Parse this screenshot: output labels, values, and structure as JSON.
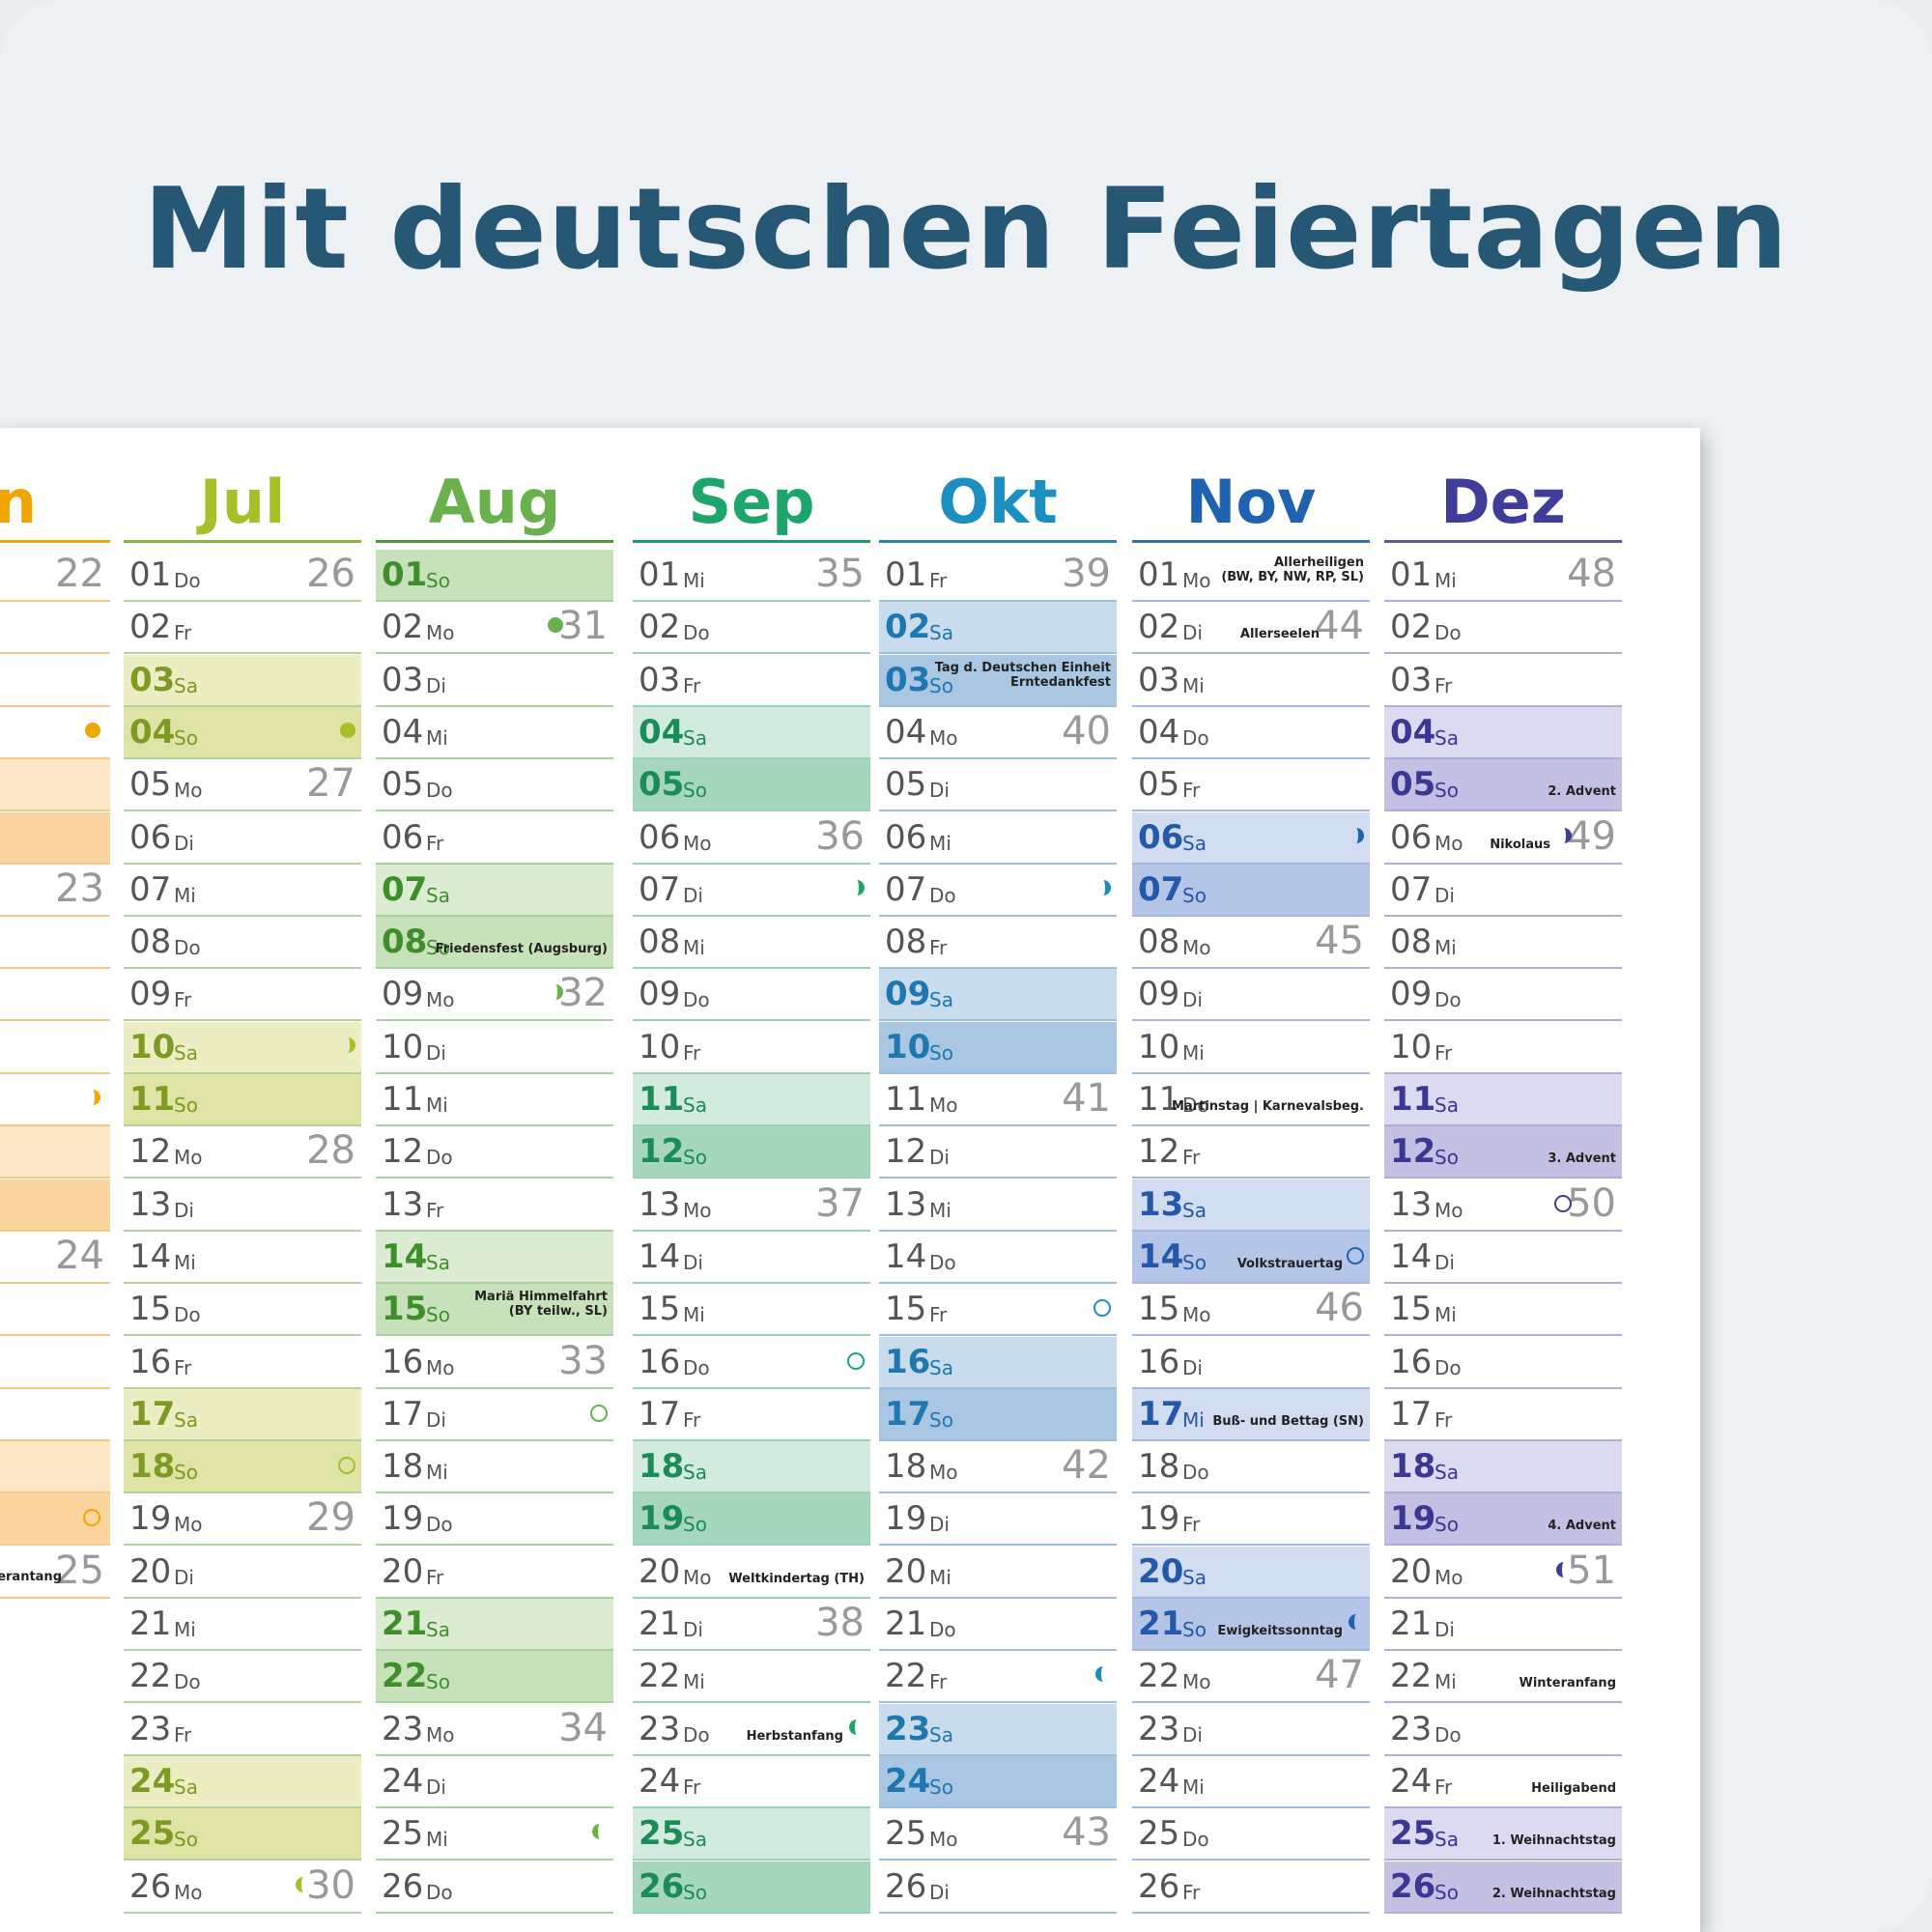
{
  "headline": "Mit deutschen Feiertagen",
  "partial_month": {
    "label": "un",
    "color": "#f0a500",
    "rule": "#f0a500",
    "rows": [
      {
        "wk": "22"
      },
      {},
      {},
      {
        "moon": "full"
      },
      {
        "shade": "#fde6c5"
      },
      {
        "shade": "#fbd59f"
      },
      {
        "wk": "23"
      },
      {},
      {},
      {},
      {
        "moon": "half"
      },
      {
        "shade": "#fde6c5"
      },
      {
        "shade": "#fbd59f"
      },
      {
        "wk": "24"
      },
      {},
      {},
      {},
      {
        "shade": "#fde6c5"
      },
      {
        "shade": "#fbd59f",
        "moon": "new"
      },
      {
        "ev": "nerantang",
        "wk": "25"
      }
    ]
  },
  "months": [
    {
      "name": "Jul",
      "color": "#a8bf2a",
      "rule": "#8fb340",
      "line": "#b7d0a0",
      "sa": "#ecedc3",
      "so": "#dfe3a6",
      "daycolor": "#7e9a22",
      "days": [
        {
          "d": "01",
          "w": "Do",
          "wk": "26"
        },
        {
          "d": "02",
          "w": "Fr"
        },
        {
          "d": "03",
          "w": "Sa"
        },
        {
          "d": "04",
          "w": "So",
          "moon": "full"
        },
        {
          "d": "05",
          "w": "Mo",
          "wk": "27"
        },
        {
          "d": "06",
          "w": "Di"
        },
        {
          "d": "07",
          "w": "Mi"
        },
        {
          "d": "08",
          "w": "Do"
        },
        {
          "d": "09",
          "w": "Fr"
        },
        {
          "d": "10",
          "w": "Sa",
          "moon": "half"
        },
        {
          "d": "11",
          "w": "So"
        },
        {
          "d": "12",
          "w": "Mo",
          "wk": "28"
        },
        {
          "d": "13",
          "w": "Di"
        },
        {
          "d": "14",
          "w": "Mi"
        },
        {
          "d": "15",
          "w": "Do"
        },
        {
          "d": "16",
          "w": "Fr"
        },
        {
          "d": "17",
          "w": "Sa"
        },
        {
          "d": "18",
          "w": "So",
          "moon": "new"
        },
        {
          "d": "19",
          "w": "Mo",
          "wk": "29"
        },
        {
          "d": "20",
          "w": "Di"
        },
        {
          "d": "21",
          "w": "Mi"
        },
        {
          "d": "22",
          "w": "Do"
        },
        {
          "d": "23",
          "w": "Fr"
        },
        {
          "d": "24",
          "w": "Sa"
        },
        {
          "d": "25",
          "w": "So"
        },
        {
          "d": "26",
          "w": "Mo",
          "wk": "30",
          "moon": "crescent"
        }
      ]
    },
    {
      "name": "Aug",
      "color": "#6ab04c",
      "rule": "#4c9a3a",
      "line": "#a9d0a0",
      "sa": "#dcecd2",
      "so": "#c7e2bb",
      "daycolor": "#3e8f2b",
      "days": [
        {
          "d": "01",
          "w": "So"
        },
        {
          "d": "02",
          "w": "Mo",
          "wk": "31",
          "moon": "full"
        },
        {
          "d": "03",
          "w": "Di"
        },
        {
          "d": "04",
          "w": "Mi"
        },
        {
          "d": "05",
          "w": "Do"
        },
        {
          "d": "06",
          "w": "Fr"
        },
        {
          "d": "07",
          "w": "Sa"
        },
        {
          "d": "08",
          "w": "So",
          "ev": "Friedensfest (Augsburg)"
        },
        {
          "d": "09",
          "w": "Mo",
          "wk": "32",
          "moon": "half"
        },
        {
          "d": "10",
          "w": "Di"
        },
        {
          "d": "11",
          "w": "Mi"
        },
        {
          "d": "12",
          "w": "Do"
        },
        {
          "d": "13",
          "w": "Fr"
        },
        {
          "d": "14",
          "w": "Sa"
        },
        {
          "d": "15",
          "w": "So",
          "ev": "Mariä Himmelfahrt\n(BY teilw., SL)"
        },
        {
          "d": "16",
          "w": "Mo",
          "wk": "33"
        },
        {
          "d": "17",
          "w": "Di",
          "moon": "new"
        },
        {
          "d": "18",
          "w": "Mi"
        },
        {
          "d": "19",
          "w": "Do"
        },
        {
          "d": "20",
          "w": "Fr"
        },
        {
          "d": "21",
          "w": "Sa"
        },
        {
          "d": "22",
          "w": "So"
        },
        {
          "d": "23",
          "w": "Mo",
          "wk": "34"
        },
        {
          "d": "24",
          "w": "Di"
        },
        {
          "d": "25",
          "w": "Mi",
          "moon": "crescent"
        },
        {
          "d": "26",
          "w": "Do"
        }
      ]
    },
    {
      "name": "Sep",
      "color": "#1ea56b",
      "rule": "#1f9c66",
      "line": "#9cd0b8",
      "sa": "#d3ebde",
      "so": "#a6d6bc",
      "daycolor": "#1a8c58",
      "days": [
        {
          "d": "01",
          "w": "Mi",
          "wk": "35"
        },
        {
          "d": "02",
          "w": "Do"
        },
        {
          "d": "03",
          "w": "Fr"
        },
        {
          "d": "04",
          "w": "Sa"
        },
        {
          "d": "05",
          "w": "So"
        },
        {
          "d": "06",
          "w": "Mo",
          "wk": "36"
        },
        {
          "d": "07",
          "w": "Di",
          "moon": "half"
        },
        {
          "d": "08",
          "w": "Mi"
        },
        {
          "d": "09",
          "w": "Do"
        },
        {
          "d": "10",
          "w": "Fr"
        },
        {
          "d": "11",
          "w": "Sa"
        },
        {
          "d": "12",
          "w": "So"
        },
        {
          "d": "13",
          "w": "Mo",
          "wk": "37"
        },
        {
          "d": "14",
          "w": "Di"
        },
        {
          "d": "15",
          "w": "Mi"
        },
        {
          "d": "16",
          "w": "Do",
          "moon": "new"
        },
        {
          "d": "17",
          "w": "Fr"
        },
        {
          "d": "18",
          "w": "Sa"
        },
        {
          "d": "19",
          "w": "So"
        },
        {
          "d": "20",
          "w": "Mo",
          "ev": "Weltkindertag (TH)"
        },
        {
          "d": "21",
          "w": "Di",
          "wk": "38"
        },
        {
          "d": "22",
          "w": "Mi"
        },
        {
          "d": "23",
          "w": "Do",
          "ev": "Herbstanfang",
          "moon": "crescent"
        },
        {
          "d": "24",
          "w": "Fr"
        },
        {
          "d": "25",
          "w": "Sa"
        },
        {
          "d": "26",
          "w": "So"
        }
      ]
    },
    {
      "name": "Okt",
      "color": "#1a8fc0",
      "rule": "#2f7fb5",
      "line": "#9bbfd8",
      "sa": "#c9dcee",
      "so": "#a9c6e3",
      "daycolor": "#1f77b0",
      "days": [
        {
          "d": "01",
          "w": "Fr",
          "wk": "39"
        },
        {
          "d": "02",
          "w": "Sa"
        },
        {
          "d": "03",
          "w": "So",
          "ev": "Tag d. Deutschen Einheit\nErntedankfest"
        },
        {
          "d": "04",
          "w": "Mo",
          "wk": "40"
        },
        {
          "d": "05",
          "w": "Di"
        },
        {
          "d": "06",
          "w": "Mi"
        },
        {
          "d": "07",
          "w": "Do",
          "moon": "half"
        },
        {
          "d": "08",
          "w": "Fr"
        },
        {
          "d": "09",
          "w": "Sa"
        },
        {
          "d": "10",
          "w": "So"
        },
        {
          "d": "11",
          "w": "Mo",
          "wk": "41"
        },
        {
          "d": "12",
          "w": "Di"
        },
        {
          "d": "13",
          "w": "Mi"
        },
        {
          "d": "14",
          "w": "Do"
        },
        {
          "d": "15",
          "w": "Fr",
          "moon": "new"
        },
        {
          "d": "16",
          "w": "Sa"
        },
        {
          "d": "17",
          "w": "So"
        },
        {
          "d": "18",
          "w": "Mo",
          "wk": "42"
        },
        {
          "d": "19",
          "w": "Di"
        },
        {
          "d": "20",
          "w": "Mi"
        },
        {
          "d": "21",
          "w": "Do"
        },
        {
          "d": "22",
          "w": "Fr",
          "moon": "crescent"
        },
        {
          "d": "23",
          "w": "Sa"
        },
        {
          "d": "24",
          "w": "So"
        },
        {
          "d": "25",
          "w": "Mo",
          "wk": "43"
        },
        {
          "d": "26",
          "w": "Di"
        }
      ]
    },
    {
      "name": "Nov",
      "color": "#1f63b0",
      "rule": "#3a6cb8",
      "line": "#a6b7dd",
      "sa": "#d2dcf1",
      "so": "#b4c5e8",
      "daycolor": "#2458a8",
      "days": [
        {
          "d": "01",
          "w": "Mo",
          "ev": "Allerheiligen\n(BW, BY, NW, RP, SL)"
        },
        {
          "d": "02",
          "w": "Di",
          "wk": "44",
          "ev": "Allerseelen"
        },
        {
          "d": "03",
          "w": "Mi"
        },
        {
          "d": "04",
          "w": "Do"
        },
        {
          "d": "05",
          "w": "Fr"
        },
        {
          "d": "06",
          "w": "Sa",
          "moon": "half"
        },
        {
          "d": "07",
          "w": "So"
        },
        {
          "d": "08",
          "w": "Mo",
          "wk": "45"
        },
        {
          "d": "09",
          "w": "Di"
        },
        {
          "d": "10",
          "w": "Mi"
        },
        {
          "d": "11",
          "w": "Do",
          "ev": "Martinstag | Karnevalsbeg."
        },
        {
          "d": "12",
          "w": "Fr"
        },
        {
          "d": "13",
          "w": "Sa"
        },
        {
          "d": "14",
          "w": "So",
          "ev": "Volkstrauertag",
          "moon": "new"
        },
        {
          "d": "15",
          "w": "Mo",
          "wk": "46"
        },
        {
          "d": "16",
          "w": "Di"
        },
        {
          "d": "17",
          "w": "Mi",
          "ev": "Buß- und Bettag (SN)",
          "hl": true
        },
        {
          "d": "18",
          "w": "Do"
        },
        {
          "d": "19",
          "w": "Fr"
        },
        {
          "d": "20",
          "w": "Sa"
        },
        {
          "d": "21",
          "w": "So",
          "ev": "Ewigkeitssonntag",
          "moon": "crescent"
        },
        {
          "d": "22",
          "w": "Mo",
          "wk": "47"
        },
        {
          "d": "23",
          "w": "Di"
        },
        {
          "d": "24",
          "w": "Mi"
        },
        {
          "d": "25",
          "w": "Do"
        },
        {
          "d": "26",
          "w": "Fr"
        }
      ]
    },
    {
      "name": "Dez",
      "color": "#3e3d99",
      "rule": "#5b58a8",
      "line": "#b0aed7",
      "sa": "#dcdaf0",
      "so": "#c3c0e4",
      "daycolor": "#3b3894",
      "days": [
        {
          "d": "01",
          "w": "Mi",
          "wk": "48"
        },
        {
          "d": "02",
          "w": "Do"
        },
        {
          "d": "03",
          "w": "Fr"
        },
        {
          "d": "04",
          "w": "Sa"
        },
        {
          "d": "05",
          "w": "So",
          "ev": "2. Advent"
        },
        {
          "d": "06",
          "w": "Mo",
          "wk": "49",
          "ev": "Nikolaus",
          "moon": "half"
        },
        {
          "d": "07",
          "w": "Di"
        },
        {
          "d": "08",
          "w": "Mi"
        },
        {
          "d": "09",
          "w": "Do"
        },
        {
          "d": "10",
          "w": "Fr"
        },
        {
          "d": "11",
          "w": "Sa"
        },
        {
          "d": "12",
          "w": "So",
          "ev": "3. Advent"
        },
        {
          "d": "13",
          "w": "Mo",
          "wk": "50",
          "moon": "new"
        },
        {
          "d": "14",
          "w": "Di"
        },
        {
          "d": "15",
          "w": "Mi"
        },
        {
          "d": "16",
          "w": "Do"
        },
        {
          "d": "17",
          "w": "Fr"
        },
        {
          "d": "18",
          "w": "Sa"
        },
        {
          "d": "19",
          "w": "So",
          "ev": "4. Advent"
        },
        {
          "d": "20",
          "w": "Mo",
          "wk": "51",
          "moon": "crescent"
        },
        {
          "d": "21",
          "w": "Di"
        },
        {
          "d": "22",
          "w": "Mi",
          "ev": "Winteranfang"
        },
        {
          "d": "23",
          "w": "Do"
        },
        {
          "d": "24",
          "w": "Fr",
          "ev": "Heiligabend"
        },
        {
          "d": "25",
          "w": "Sa",
          "ev": "1. Weihnachtstag",
          "hl": true
        },
        {
          "d": "26",
          "w": "So",
          "ev": "2. Weihnachtstag"
        }
      ]
    }
  ]
}
